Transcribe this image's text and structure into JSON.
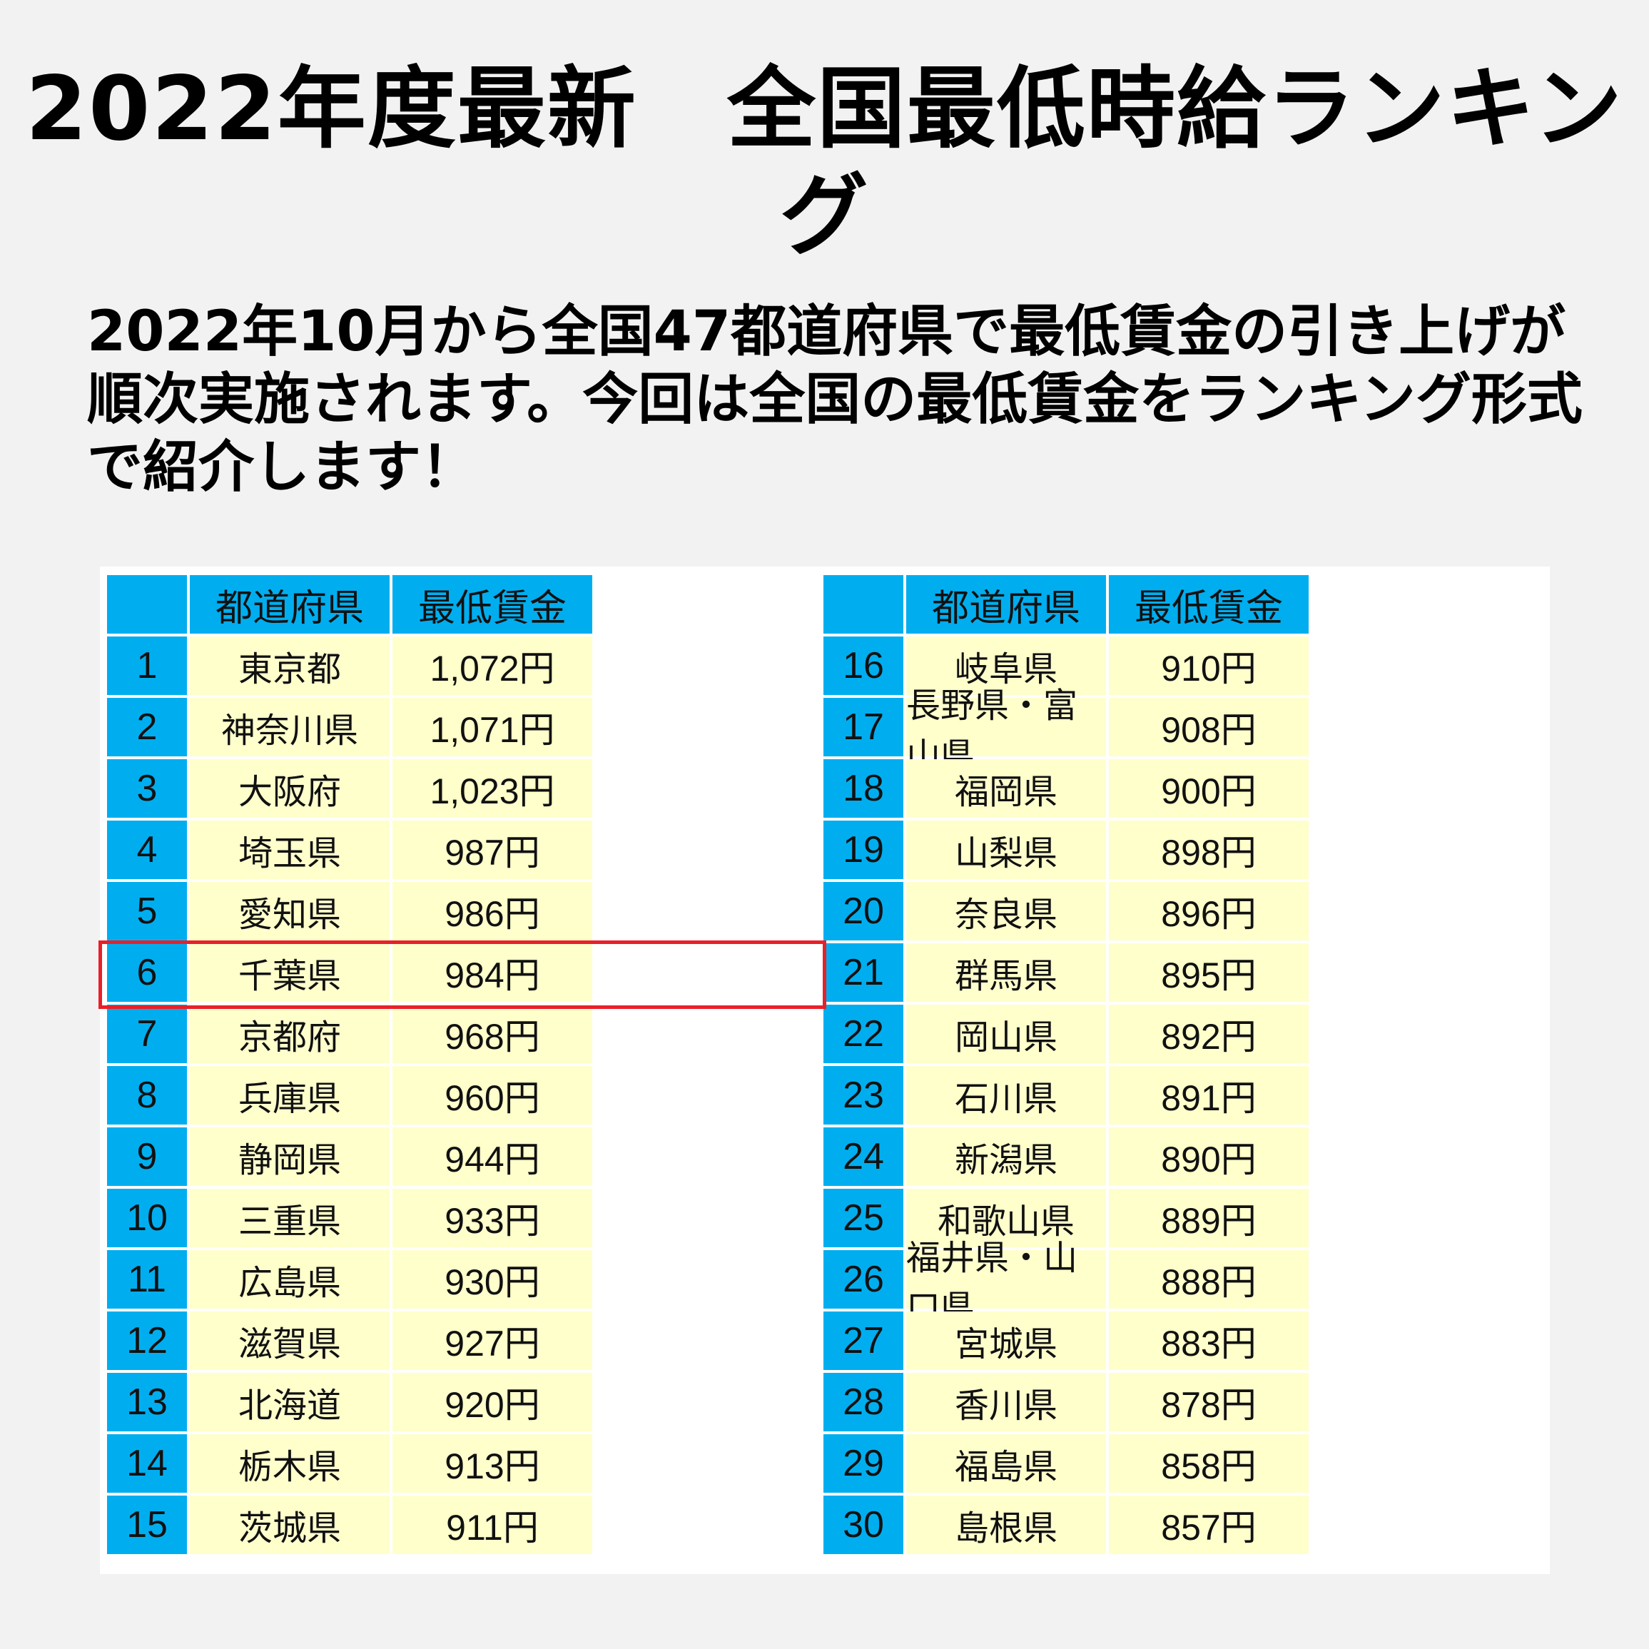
{
  "title": "2022年度最新　全国最低時給ランキング",
  "intro": "2022年10月から全国47都道府県で最低賃金の引き上げが順次実施されます。今回は全国の最低賃金をランキング形式で紹介します！",
  "table": {
    "headers": {
      "rank": "",
      "prefecture": "都道府県",
      "wage": "最低賃金"
    },
    "left": [
      {
        "rank": "1",
        "prefecture": "東京都",
        "wage": "1,072円"
      },
      {
        "rank": "2",
        "prefecture": "神奈川県",
        "wage": "1,071円"
      },
      {
        "rank": "3",
        "prefecture": "大阪府",
        "wage": "1,023円"
      },
      {
        "rank": "4",
        "prefecture": "埼玉県",
        "wage": "987円"
      },
      {
        "rank": "5",
        "prefecture": "愛知県",
        "wage": "986円"
      },
      {
        "rank": "6",
        "prefecture": "千葉県",
        "wage": "984円"
      },
      {
        "rank": "7",
        "prefecture": "京都府",
        "wage": "968円"
      },
      {
        "rank": "8",
        "prefecture": "兵庫県",
        "wage": "960円"
      },
      {
        "rank": "9",
        "prefecture": "静岡県",
        "wage": "944円"
      },
      {
        "rank": "10",
        "prefecture": "三重県",
        "wage": "933円"
      },
      {
        "rank": "11",
        "prefecture": "広島県",
        "wage": "930円"
      },
      {
        "rank": "12",
        "prefecture": "滋賀県",
        "wage": "927円"
      },
      {
        "rank": "13",
        "prefecture": "北海道",
        "wage": "920円"
      },
      {
        "rank": "14",
        "prefecture": "栃木県",
        "wage": "913円"
      },
      {
        "rank": "15",
        "prefecture": "茨城県",
        "wage": "911円"
      }
    ],
    "right": [
      {
        "rank": "16",
        "prefecture": "岐阜県",
        "wage": "910円"
      },
      {
        "rank": "17",
        "prefecture": "長野県・富山県",
        "wage": "908円"
      },
      {
        "rank": "18",
        "prefecture": "福岡県",
        "wage": "900円"
      },
      {
        "rank": "19",
        "prefecture": "山梨県",
        "wage": "898円"
      },
      {
        "rank": "20",
        "prefecture": "奈良県",
        "wage": "896円"
      },
      {
        "rank": "21",
        "prefecture": "群馬県",
        "wage": "895円"
      },
      {
        "rank": "22",
        "prefecture": "岡山県",
        "wage": "892円"
      },
      {
        "rank": "23",
        "prefecture": "石川県",
        "wage": "891円"
      },
      {
        "rank": "24",
        "prefecture": "新潟県",
        "wage": "890円"
      },
      {
        "rank": "25",
        "prefecture": "和歌山県",
        "wage": "889円"
      },
      {
        "rank": "26",
        "prefecture": "福井県・山口県",
        "wage": "888円"
      },
      {
        "rank": "27",
        "prefecture": "宮城県",
        "wage": "883円"
      },
      {
        "rank": "28",
        "prefecture": "香川県",
        "wage": "878円"
      },
      {
        "rank": "29",
        "prefecture": "福島県",
        "wage": "858円"
      },
      {
        "rank": "30",
        "prefecture": "島根県",
        "wage": "857円"
      }
    ],
    "highlighted_rank": "6"
  },
  "colors": {
    "header_blue": "#00aeef",
    "row_yellow": "#ffffcc",
    "highlight_red": "#e8202a",
    "background": "#f2f2f2"
  }
}
